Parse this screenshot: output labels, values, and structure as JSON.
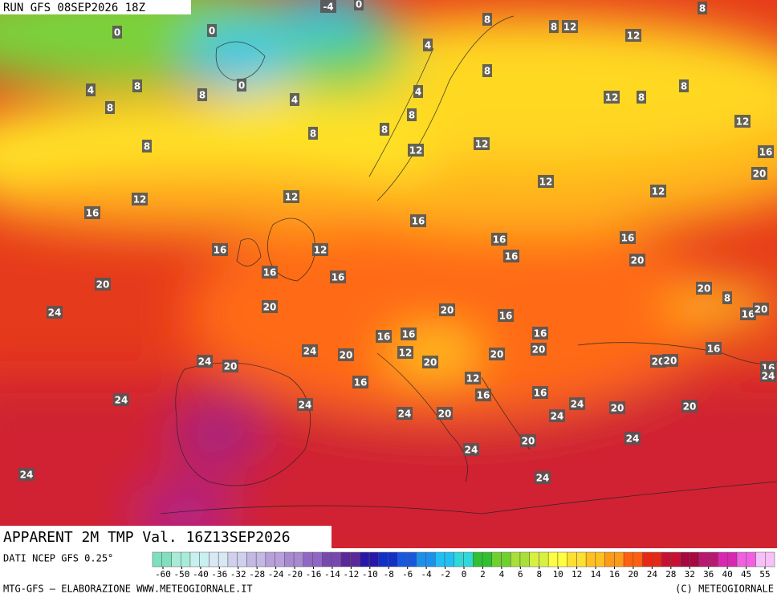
{
  "header": {
    "run": "RUN GFS 08SEP2026 18Z",
    "field": "APPARENT 2M TMP Val. 16Z13SEP2026"
  },
  "map": {
    "contour_labels": [
      -4,
      0,
      0,
      0,
      0,
      4,
      8,
      8,
      8,
      4,
      8,
      8,
      4,
      4,
      8,
      8,
      8,
      8,
      12,
      12,
      8,
      8,
      8,
      12,
      8,
      12,
      12,
      12,
      16,
      20,
      12,
      12,
      12,
      12,
      16,
      16,
      16,
      12,
      16,
      16,
      16,
      20,
      16,
      16,
      20,
      20,
      8,
      24,
      20,
      20,
      16,
      16,
      20,
      16,
      16,
      16,
      24,
      20,
      12,
      20,
      20,
      16,
      24,
      20,
      20,
      20,
      20,
      16,
      24,
      16,
      12,
      16,
      16,
      24,
      24,
      24,
      24,
      20,
      24,
      20,
      20,
      20,
      24,
      24,
      24,
      24
    ]
  },
  "legend": {
    "source": "DATI NCEP GFS 0.25°",
    "ticks": [
      -60,
      -50,
      -40,
      -36,
      -32,
      -28,
      -24,
      -20,
      -16,
      -14,
      -12,
      -10,
      -8,
      -6,
      -4,
      -2,
      0,
      2,
      4,
      6,
      8,
      10,
      12,
      14,
      16,
      20,
      24,
      28,
      32,
      36,
      40,
      45,
      55
    ]
  },
  "footer": {
    "left": "MTG-GFS — ELABORAZIONE WWW.METEOGIORNALE.IT",
    "right": "(C) METEOGIORNALE"
  }
}
